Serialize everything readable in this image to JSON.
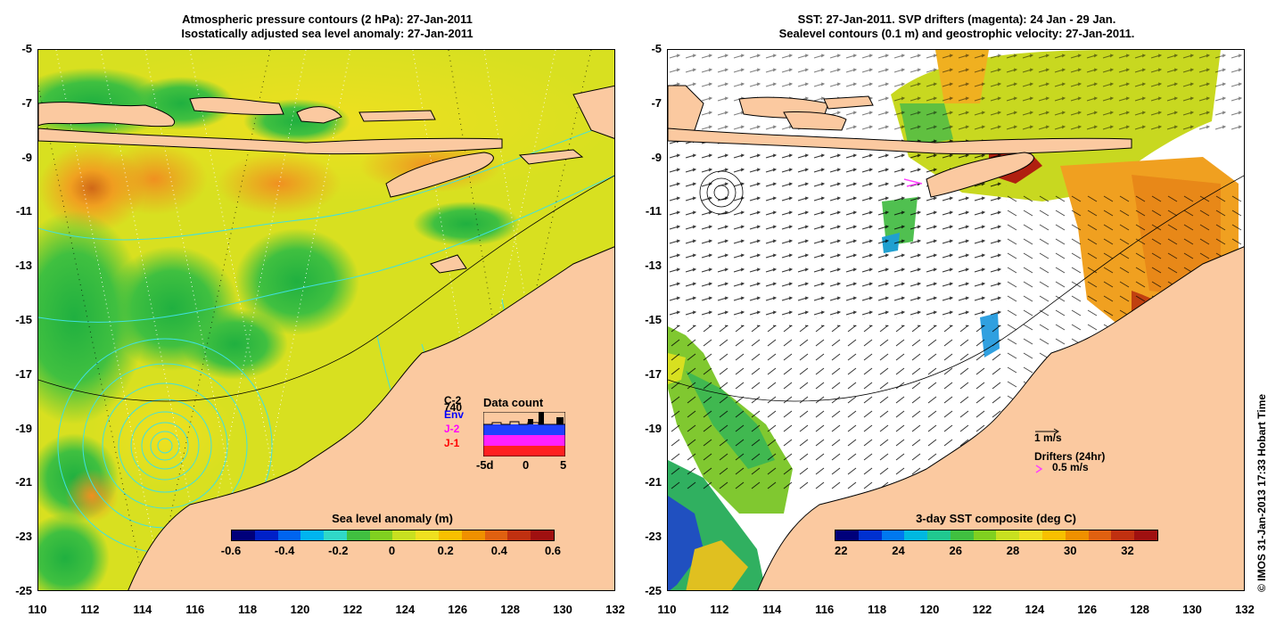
{
  "left_panel": {
    "title_line1": "Atmospheric pressure contours (2 hPa): 27-Jan-2011",
    "title_line2": "Isostatically adjusted sea level anomaly: 27-Jan-2011",
    "colorbar": {
      "title": "Sea level anomaly (m)",
      "ticks": [
        "-0.6",
        "-0.4",
        "-0.2",
        "0",
        "0.2",
        "0.4",
        "0.6"
      ],
      "colors": [
        "#00007a",
        "#0020c8",
        "#0064f0",
        "#00b4f0",
        "#30d8c8",
        "#40c040",
        "#80d020",
        "#c8e020",
        "#f0e020",
        "#f8c000",
        "#f09000",
        "#e06010",
        "#c03010",
        "#a01010"
      ]
    },
    "inset": {
      "title": "Data count",
      "labels": [
        "C-2",
        "740",
        "Env",
        "J-2",
        "J-1"
      ],
      "label_colors": [
        "#000000",
        "#000000",
        "#0000ff",
        "#ff00ff",
        "#ff0000"
      ],
      "x_ticks": [
        "-5d",
        "0",
        "5"
      ]
    }
  },
  "right_panel": {
    "title_line1": "SST: 27-Jan-2011. SVP drifters (magenta): 24 Jan - 29 Jan.",
    "title_line2": "Sealevel contours (0.1 m) and geostrophic velocity: 27-Jan-2011.",
    "colorbar": {
      "title": "3-day SST composite (deg C)",
      "ticks": [
        "22",
        "24",
        "26",
        "28",
        "30",
        "32"
      ],
      "colors": [
        "#00007a",
        "#0030d0",
        "#0078f0",
        "#00b8e0",
        "#20c890",
        "#40c040",
        "#80d020",
        "#c8e020",
        "#f0e020",
        "#f8c000",
        "#f09000",
        "#e06010",
        "#c03010",
        "#a01010"
      ]
    },
    "legend": {
      "velocity_label": "1 m/s",
      "drifters_label": "Drifters (24hr)",
      "drifter_speed": "0.5 m/s"
    }
  },
  "axes": {
    "y_ticks": [
      "-5",
      "-7",
      "-9",
      "-11",
      "-13",
      "-15",
      "-17",
      "-19",
      "-21",
      "-23",
      "-25"
    ],
    "x_ticks": [
      "110",
      "112",
      "114",
      "116",
      "118",
      "120",
      "122",
      "124",
      "126",
      "128",
      "130",
      "132"
    ]
  },
  "credit": "© IMOS 31-Jan-2013 17:33 Hobart Time",
  "colors": {
    "land": "#fbc9a0",
    "coast": "#000000",
    "pressure_contour": "#40e0e0"
  }
}
